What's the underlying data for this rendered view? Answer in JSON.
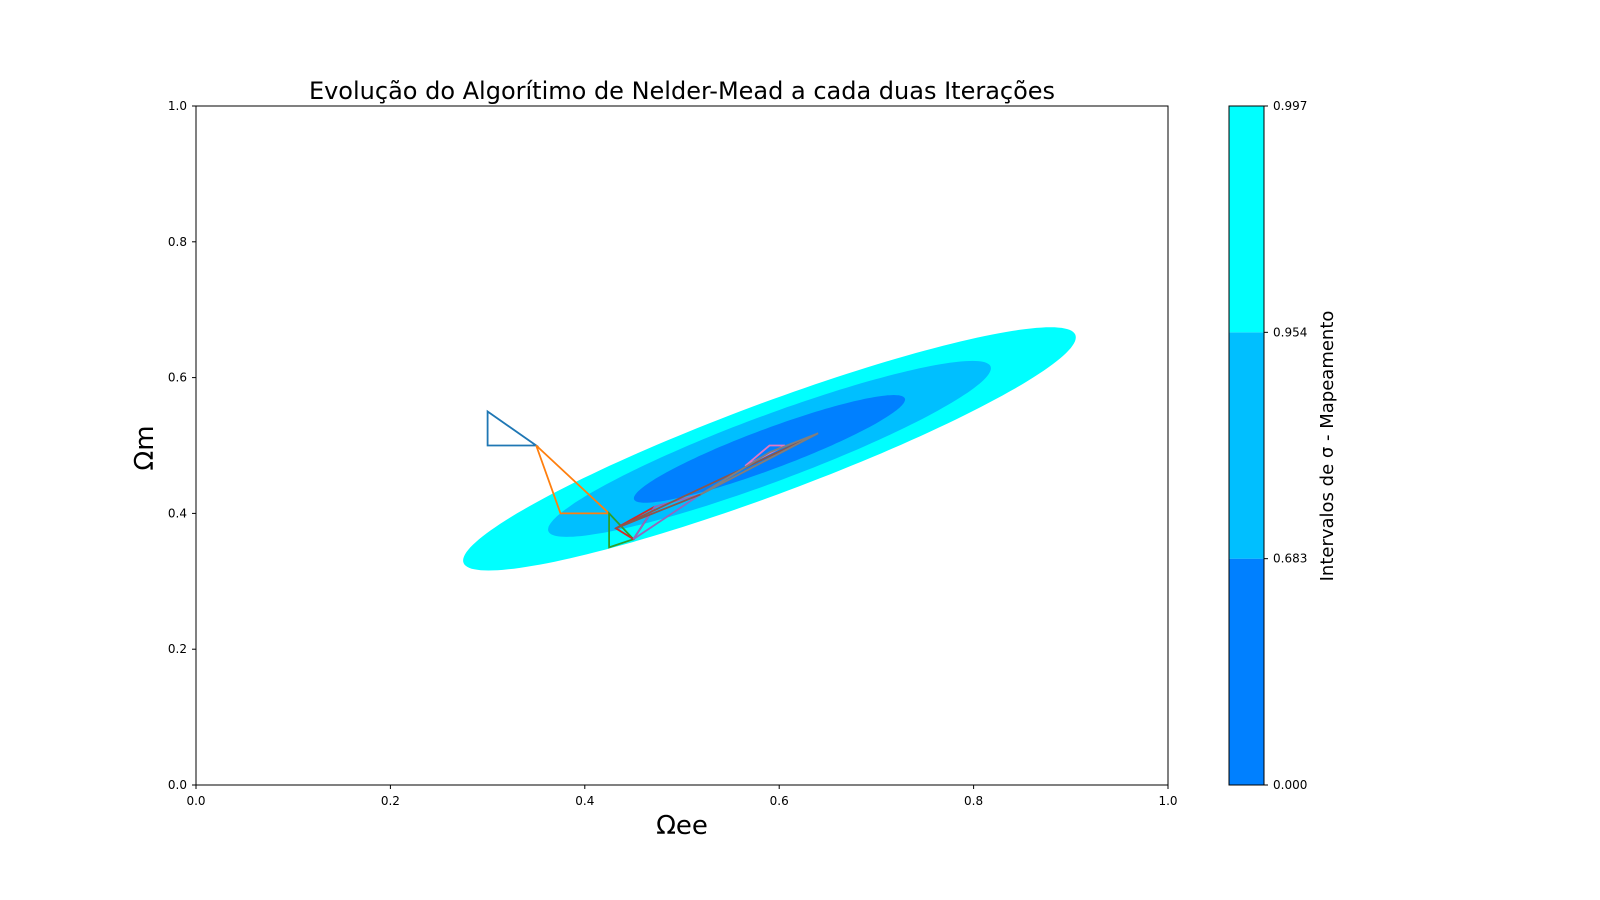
{
  "chart_data": {
    "type": "contourf",
    "title": "Evolução do Algorítimo de Nelder-Mead a cada duas Iterações",
    "xlabel": "Ωee",
    "ylabel": "Ωm",
    "xlim": [
      0.0,
      1.0
    ],
    "ylim": [
      0.0,
      1.0
    ],
    "xticks": [
      "0.0",
      "0.2",
      "0.4",
      "0.6",
      "0.8",
      "1.0"
    ],
    "yticks": [
      "0.0",
      "0.2",
      "0.4",
      "0.6",
      "0.8",
      "1.0"
    ],
    "grid": false,
    "contours": {
      "center": [
        0.59,
        0.495
      ],
      "tilt_deg": 28.5,
      "levels": [
        {
          "name": "0.954-0.997",
          "semi_major": 0.357,
          "semi_minor": 0.063,
          "color": "#00ffff"
        },
        {
          "name": "0.683-0.954",
          "semi_major": 0.258,
          "semi_minor": 0.046,
          "color": "#00bfff"
        },
        {
          "name": "0.000-0.683",
          "semi_major": 0.158,
          "semi_minor": 0.028,
          "color": "#0080ff"
        }
      ]
    },
    "simplexes": [
      {
        "color": "#1f77b4",
        "points": [
          [
            0.3,
            0.55
          ],
          [
            0.3,
            0.5
          ],
          [
            0.35,
            0.5
          ]
        ]
      },
      {
        "color": "#ff7f0e",
        "points": [
          [
            0.35,
            0.5
          ],
          [
            0.375,
            0.4
          ],
          [
            0.425,
            0.4
          ]
        ]
      },
      {
        "color": "#2ca02c",
        "points": [
          [
            0.425,
            0.4
          ],
          [
            0.425,
            0.35
          ],
          [
            0.45,
            0.362
          ]
        ]
      },
      {
        "color": "#d62728",
        "points": [
          [
            0.432,
            0.378
          ],
          [
            0.45,
            0.362
          ],
          [
            0.472,
            0.41
          ]
        ]
      },
      {
        "color": "#9467bd",
        "points": [
          [
            0.45,
            0.362
          ],
          [
            0.472,
            0.41
          ],
          [
            0.519,
            0.428
          ]
        ]
      },
      {
        "color": "#8c564b",
        "points": [
          [
            0.432,
            0.378
          ],
          [
            0.519,
            0.428
          ],
          [
            0.64,
            0.518
          ]
        ]
      },
      {
        "color": "#e377c2",
        "points": [
          [
            0.59,
            0.5
          ],
          [
            0.606,
            0.5
          ],
          [
            0.565,
            0.47
          ]
        ]
      },
      {
        "color": "#7f7f7f",
        "points": [
          [
            0.519,
            0.428
          ],
          [
            0.64,
            0.518
          ],
          [
            0.59,
            0.49
          ]
        ]
      }
    ],
    "colorbar": {
      "label": "Intervalos de σ - Mapeamento",
      "ticks": [
        "0.000",
        "0.683",
        "0.954",
        "0.997"
      ],
      "segments": [
        {
          "from": 0.0,
          "to": 0.683,
          "color": "#0080ff"
        },
        {
          "from": 0.683,
          "to": 0.954,
          "color": "#00bfff"
        },
        {
          "from": 0.954,
          "to": 0.997,
          "color": "#00ffff"
        }
      ]
    }
  }
}
